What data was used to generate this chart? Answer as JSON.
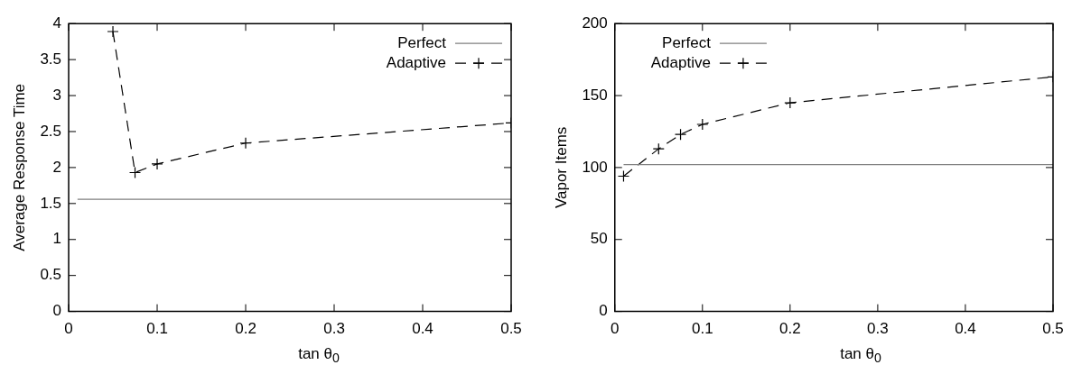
{
  "chart_data": [
    {
      "type": "line",
      "xlabel": "tan θ$_{0}$",
      "ylabel": "Average Response Time",
      "xlim": [
        0,
        0.5
      ],
      "xticks": [
        0,
        0.1,
        0.2,
        0.3,
        0.4,
        0.5
      ],
      "ylim": [
        0,
        4
      ],
      "yticks": [
        0,
        0.5,
        1,
        1.5,
        2,
        2.5,
        3,
        3.5,
        4
      ],
      "grid": false,
      "legend": "top right",
      "series": [
        {
          "name": "Perfect",
          "color": "#808080",
          "x": [
            0.01,
            0.5
          ],
          "values": [
            1.56,
            1.56
          ],
          "marker": "none",
          "line_style": "solid"
        },
        {
          "name": "Adaptive",
          "color": "#000000",
          "x": [
            0.05,
            0.075,
            0.1,
            0.2,
            0.5
          ],
          "values": [
            3.89,
            1.93,
            2.05,
            2.34,
            2.62
          ],
          "marker": "cross",
          "line_style": "dashed"
        }
      ]
    },
    {
      "type": "line",
      "xlabel": "tan θ$_{0}$",
      "ylabel": "Vapor Items",
      "xlim": [
        0,
        0.5
      ],
      "xticks": [
        0,
        0.1,
        0.2,
        0.3,
        0.4,
        0.5
      ],
      "ylim": [
        0,
        200
      ],
      "yticks": [
        0,
        50,
        100,
        150,
        200
      ],
      "grid": false,
      "legend": "top left",
      "series": [
        {
          "name": "Perfect",
          "color": "#808080",
          "x": [
            0.01,
            0.5
          ],
          "values": [
            102,
            102
          ],
          "marker": "none",
          "line_style": "solid"
        },
        {
          "name": "Adaptive",
          "color": "#000000",
          "x": [
            0.01,
            0.05,
            0.075,
            0.1,
            0.2,
            0.5
          ],
          "values": [
            94,
            113,
            123,
            130,
            145,
            163
          ],
          "marker": "cross",
          "line_style": "dashed"
        }
      ]
    }
  ]
}
